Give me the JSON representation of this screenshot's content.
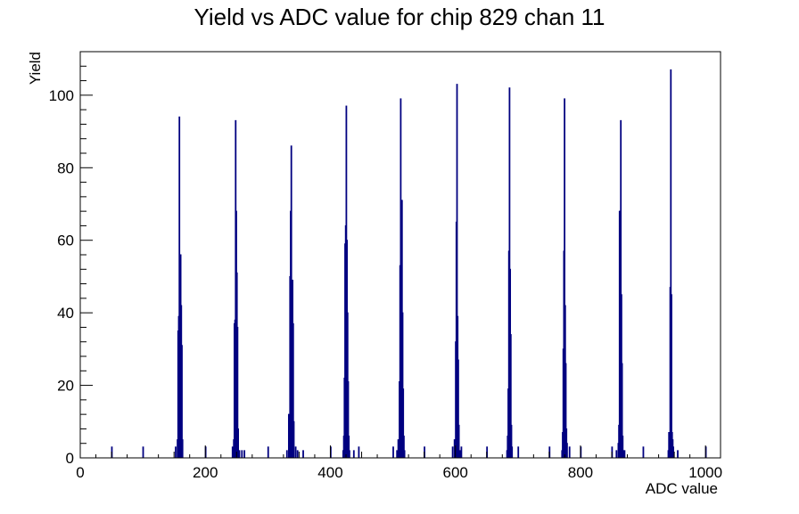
{
  "chart_data": {
    "type": "histogram",
    "title": "Yield vs ADC value for chip 829 chan 11",
    "xlabel": "ADC value",
    "ylabel": "Yield",
    "xlim": [
      0,
      1024
    ],
    "ylim": [
      0,
      112
    ],
    "x_ticks": [
      0,
      200,
      400,
      600,
      800,
      1000
    ],
    "x_tick_labels": [
      "0",
      "200",
      "400",
      "600",
      "800",
      "1000"
    ],
    "y_ticks": [
      0,
      20,
      40,
      60,
      80,
      100
    ],
    "y_tick_labels": [
      "0",
      "20",
      "40",
      "60",
      "80",
      "100"
    ],
    "line_color": "#000080",
    "bins": [
      [
        50,
        3
      ],
      [
        100,
        3
      ],
      [
        152,
        3
      ],
      [
        155,
        5
      ],
      [
        156,
        35
      ],
      [
        157,
        39
      ],
      [
        158,
        94
      ],
      [
        159,
        56
      ],
      [
        160,
        56
      ],
      [
        161,
        42
      ],
      [
        162,
        31
      ],
      [
        163,
        5
      ],
      [
        200,
        3
      ],
      [
        243,
        3
      ],
      [
        245,
        5
      ],
      [
        246,
        37
      ],
      [
        247,
        38
      ],
      [
        248,
        93
      ],
      [
        249,
        68
      ],
      [
        250,
        51
      ],
      [
        251,
        36
      ],
      [
        252,
        8
      ],
      [
        254,
        2
      ],
      [
        258,
        2
      ],
      [
        262,
        2
      ],
      [
        300,
        3
      ],
      [
        330,
        2
      ],
      [
        333,
        12
      ],
      [
        335,
        50
      ],
      [
        336,
        68
      ],
      [
        337,
        86
      ],
      [
        338,
        37
      ],
      [
        339,
        49
      ],
      [
        340,
        37
      ],
      [
        341,
        10
      ],
      [
        344,
        3
      ],
      [
        347,
        2
      ],
      [
        356,
        2
      ],
      [
        400,
        3
      ],
      [
        420,
        2
      ],
      [
        421,
        6
      ],
      [
        422,
        22
      ],
      [
        423,
        59
      ],
      [
        424,
        64
      ],
      [
        425,
        97
      ],
      [
        426,
        60
      ],
      [
        427,
        40
      ],
      [
        428,
        21
      ],
      [
        429,
        6
      ],
      [
        430,
        2
      ],
      [
        437,
        2
      ],
      [
        445,
        3
      ],
      [
        500,
        3
      ],
      [
        506,
        2
      ],
      [
        508,
        5
      ],
      [
        510,
        21
      ],
      [
        511,
        53
      ],
      [
        512,
        99
      ],
      [
        513,
        71
      ],
      [
        514,
        71
      ],
      [
        515,
        40
      ],
      [
        516,
        19
      ],
      [
        517,
        6
      ],
      [
        518,
        2
      ],
      [
        550,
        3
      ],
      [
        595,
        3
      ],
      [
        598,
        5
      ],
      [
        600,
        32
      ],
      [
        601,
        65
      ],
      [
        602,
        103
      ],
      [
        603,
        39
      ],
      [
        604,
        27
      ],
      [
        605,
        9
      ],
      [
        607,
        2
      ],
      [
        609,
        3
      ],
      [
        650,
        3
      ],
      [
        682,
        2
      ],
      [
        683,
        6
      ],
      [
        684,
        19
      ],
      [
        685,
        57
      ],
      [
        686,
        102
      ],
      [
        687,
        52
      ],
      [
        688,
        34
      ],
      [
        689,
        9
      ],
      [
        690,
        3
      ],
      [
        700,
        3
      ],
      [
        750,
        3
      ],
      [
        770,
        2
      ],
      [
        771,
        7
      ],
      [
        772,
        30
      ],
      [
        773,
        57
      ],
      [
        774,
        99
      ],
      [
        775,
        42
      ],
      [
        776,
        26
      ],
      [
        777,
        8
      ],
      [
        778,
        4
      ],
      [
        782,
        3
      ],
      [
        800,
        3
      ],
      [
        850,
        3
      ],
      [
        857,
        2
      ],
      [
        860,
        4
      ],
      [
        861,
        9
      ],
      [
        862,
        68
      ],
      [
        863,
        68
      ],
      [
        864,
        93
      ],
      [
        865,
        45
      ],
      [
        866,
        26
      ],
      [
        867,
        6
      ],
      [
        868,
        2
      ],
      [
        870,
        2
      ],
      [
        900,
        3
      ],
      [
        940,
        2
      ],
      [
        941,
        7
      ],
      [
        942,
        7
      ],
      [
        943,
        47
      ],
      [
        944,
        107
      ],
      [
        945,
        45
      ],
      [
        946,
        7
      ],
      [
        947,
        5
      ],
      [
        948,
        3
      ],
      [
        955,
        2
      ],
      [
        1000,
        3
      ]
    ]
  }
}
